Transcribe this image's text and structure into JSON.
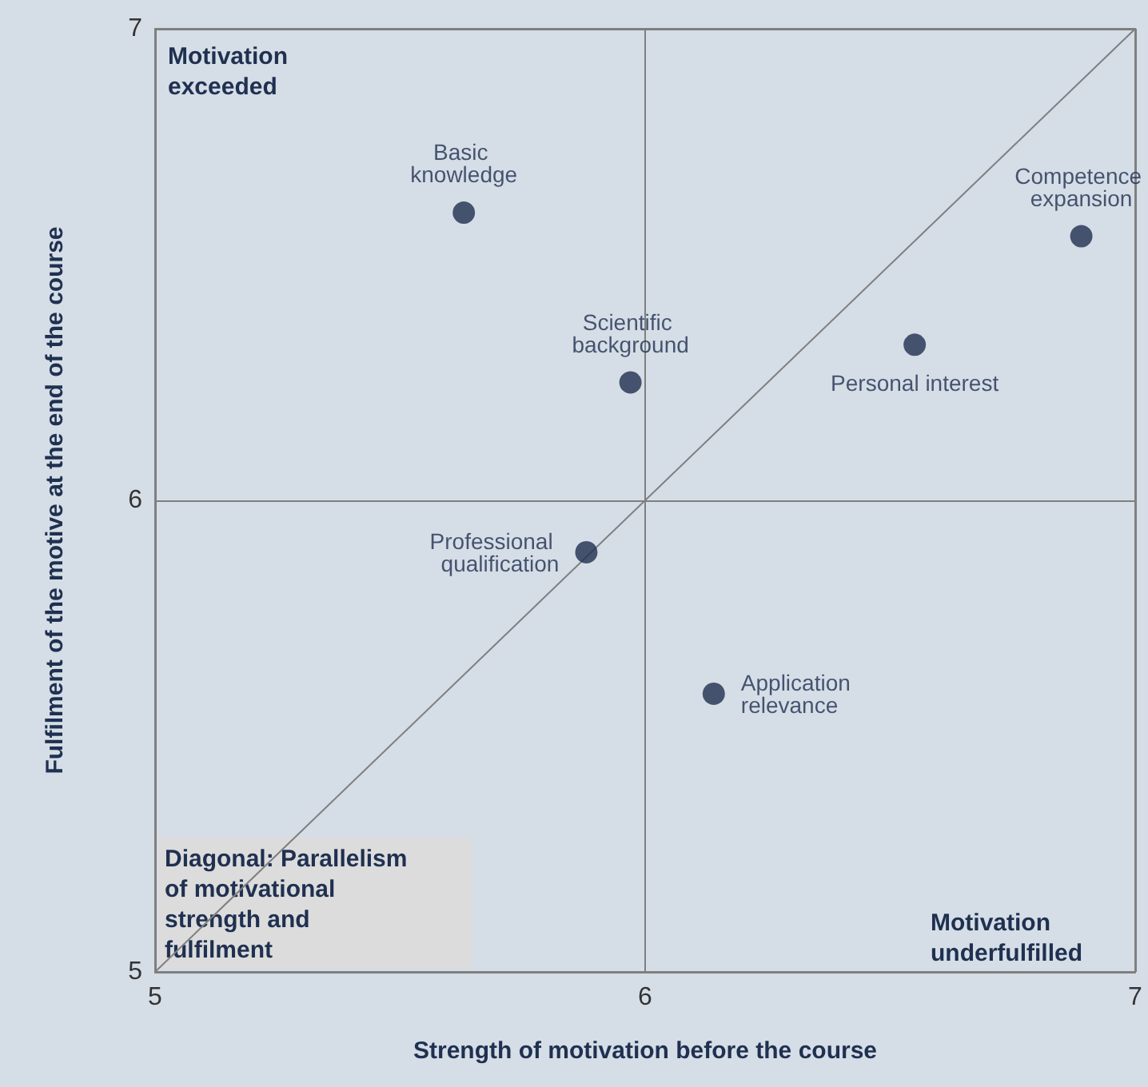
{
  "chart_data": {
    "type": "scatter",
    "xlabel": "Strength of motivation before the course",
    "ylabel": "Fulfilment of the motive at the end of the course",
    "xlim": [
      5,
      7
    ],
    "xticks": [
      5,
      6,
      7
    ],
    "ylim": [
      5,
      7
    ],
    "yticks": [
      5,
      6,
      7
    ],
    "grid": true,
    "marker": "circle",
    "line_style": "solid",
    "series": [
      {
        "name": "Basic knowledge",
        "color": "#1f3050",
        "x": [
          5.63
        ],
        "values": [
          6.61
        ]
      },
      {
        "name": "Scientific background",
        "color": "#1f3050",
        "x": [
          5.97
        ],
        "values": [
          6.25
        ]
      },
      {
        "name": "Competence expansion",
        "color": "#1f3050",
        "x": [
          6.89
        ],
        "values": [
          6.56
        ]
      },
      {
        "name": "Personal interest",
        "color": "#1f3050",
        "x": [
          6.55
        ],
        "values": [
          6.33
        ]
      },
      {
        "name": "Professional qualification",
        "color": "#1f3050",
        "x": [
          5.88
        ],
        "values": [
          5.89
        ]
      },
      {
        "name": "Application relevance",
        "color": "#1f3050",
        "x": [
          6.14
        ],
        "values": [
          5.59
        ]
      },
      {
        "type": "line",
        "color": "#7f7f7f",
        "marker": "none",
        "x": [
          5,
          7
        ],
        "values": [
          5,
          7
        ]
      }
    ],
    "annotations": [
      "Motivation exceeded",
      "Motivation underfulfilled",
      "Diagonal: Parallelism of motivational strength and fulfilment"
    ]
  }
}
